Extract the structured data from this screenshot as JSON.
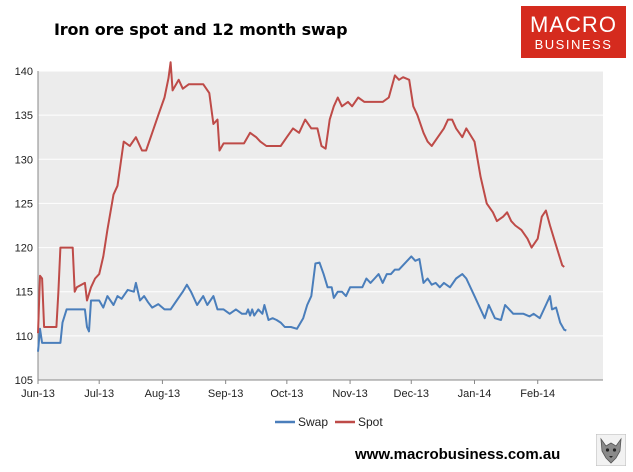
{
  "header": {
    "title": "Iron ore spot and 12 month swap",
    "logo_line1": "MACRO",
    "logo_line2": "BUSINESS",
    "logo_color": "#d52b1e"
  },
  "footer": {
    "url": "www.macrobusiness.com.au",
    "icon": "wolf-icon"
  },
  "chart_data": {
    "type": "line",
    "title": "Iron ore spot and 12 month swap",
    "xlabel": "",
    "ylabel": "",
    "ylim": [
      105,
      140
    ],
    "yticks": [
      105,
      110,
      115,
      120,
      125,
      130,
      135,
      140
    ],
    "xlim": [
      "2013-06-01",
      "2014-03-05"
    ],
    "xticks": [
      {
        "date": "2013-06-01",
        "label": "Jun-13"
      },
      {
        "date": "2013-07-01",
        "label": "Jul-13"
      },
      {
        "date": "2013-08-01",
        "label": "Aug-13"
      },
      {
        "date": "2013-09-01",
        "label": "Sep-13"
      },
      {
        "date": "2013-10-01",
        "label": "Oct-13"
      },
      {
        "date": "2013-11-01",
        "label": "Nov-13"
      },
      {
        "date": "2013-12-01",
        "label": "Dec-13"
      },
      {
        "date": "2014-01-01",
        "label": "Jan-14"
      },
      {
        "date": "2014-02-01",
        "label": "Feb-14"
      }
    ],
    "grid": true,
    "plot_background": "#ececec",
    "legend_position": "bottom",
    "series": [
      {
        "name": "Swap",
        "color": "#4a7ebb",
        "points": [
          [
            "2013-06-01",
            108.2
          ],
          [
            "2013-06-02",
            110.8
          ],
          [
            "2013-06-03",
            109.2
          ],
          [
            "2013-06-07",
            109.2
          ],
          [
            "2013-06-12",
            109.2
          ],
          [
            "2013-06-13",
            111.5
          ],
          [
            "2013-06-15",
            113.0
          ],
          [
            "2013-06-20",
            113.0
          ],
          [
            "2013-06-24",
            113.0
          ],
          [
            "2013-06-25",
            111.0
          ],
          [
            "2013-06-26",
            110.5
          ],
          [
            "2013-06-27",
            114.0
          ],
          [
            "2013-07-01",
            114.0
          ],
          [
            "2013-07-03",
            113.2
          ],
          [
            "2013-07-05",
            114.5
          ],
          [
            "2013-07-08",
            113.5
          ],
          [
            "2013-07-10",
            114.5
          ],
          [
            "2013-07-12",
            114.2
          ],
          [
            "2013-07-15",
            115.2
          ],
          [
            "2013-07-18",
            115.0
          ],
          [
            "2013-07-19",
            116.0
          ],
          [
            "2013-07-21",
            114.0
          ],
          [
            "2013-07-23",
            114.5
          ],
          [
            "2013-07-25",
            113.8
          ],
          [
            "2013-07-27",
            113.2
          ],
          [
            "2013-07-30",
            113.6
          ],
          [
            "2013-08-02",
            113.0
          ],
          [
            "2013-08-05",
            113.0
          ],
          [
            "2013-08-08",
            114.0
          ],
          [
            "2013-08-11",
            115.0
          ],
          [
            "2013-08-13",
            115.8
          ],
          [
            "2013-08-15",
            115.0
          ],
          [
            "2013-08-18",
            113.5
          ],
          [
            "2013-08-21",
            114.5
          ],
          [
            "2013-08-23",
            113.5
          ],
          [
            "2013-08-26",
            114.5
          ],
          [
            "2013-08-28",
            113.0
          ],
          [
            "2013-08-31",
            113.0
          ],
          [
            "2013-09-03",
            112.5
          ],
          [
            "2013-09-06",
            113.0
          ],
          [
            "2013-09-09",
            112.5
          ],
          [
            "2013-09-11",
            112.5
          ],
          [
            "2013-09-12",
            113.0
          ],
          [
            "2013-09-13",
            112.3
          ],
          [
            "2013-09-14",
            113.0
          ],
          [
            "2013-09-15",
            112.3
          ],
          [
            "2013-09-17",
            113.0
          ],
          [
            "2013-09-19",
            112.5
          ],
          [
            "2013-09-20",
            113.5
          ],
          [
            "2013-09-22",
            111.8
          ],
          [
            "2013-09-24",
            112.0
          ],
          [
            "2013-09-26",
            111.8
          ],
          [
            "2013-09-28",
            111.5
          ],
          [
            "2013-09-30",
            111.0
          ],
          [
            "2013-10-03",
            111.0
          ],
          [
            "2013-10-06",
            110.8
          ],
          [
            "2013-10-09",
            112.0
          ],
          [
            "2013-10-11",
            113.5
          ],
          [
            "2013-10-13",
            114.5
          ],
          [
            "2013-10-15",
            118.2
          ],
          [
            "2013-10-17",
            118.3
          ],
          [
            "2013-10-19",
            117.0
          ],
          [
            "2013-10-21",
            115.5
          ],
          [
            "2013-10-23",
            115.5
          ],
          [
            "2013-10-24",
            114.3
          ],
          [
            "2013-10-26",
            115.0
          ],
          [
            "2013-10-28",
            115.0
          ],
          [
            "2013-10-30",
            114.5
          ],
          [
            "2013-11-01",
            115.5
          ],
          [
            "2013-11-04",
            115.5
          ],
          [
            "2013-11-07",
            115.5
          ],
          [
            "2013-11-09",
            116.5
          ],
          [
            "2013-11-11",
            116.0
          ],
          [
            "2013-11-13",
            116.5
          ],
          [
            "2013-11-15",
            117.0
          ],
          [
            "2013-11-17",
            116.0
          ],
          [
            "2013-11-19",
            117.0
          ],
          [
            "2013-11-21",
            117.0
          ],
          [
            "2013-11-23",
            117.5
          ],
          [
            "2013-11-25",
            117.5
          ],
          [
            "2013-11-27",
            118.0
          ],
          [
            "2013-11-29",
            118.5
          ],
          [
            "2013-12-01",
            119.0
          ],
          [
            "2013-12-03",
            118.5
          ],
          [
            "2013-12-05",
            118.7
          ],
          [
            "2013-12-07",
            116.0
          ],
          [
            "2013-12-09",
            116.5
          ],
          [
            "2013-12-11",
            115.8
          ],
          [
            "2013-12-13",
            116.0
          ],
          [
            "2013-12-15",
            115.5
          ],
          [
            "2013-12-17",
            116.0
          ],
          [
            "2013-12-20",
            115.5
          ],
          [
            "2013-12-23",
            116.5
          ],
          [
            "2013-12-26",
            117.0
          ],
          [
            "2013-12-28",
            116.5
          ],
          [
            "2014-01-01",
            114.5
          ],
          [
            "2014-01-03",
            113.5
          ],
          [
            "2014-01-06",
            112.0
          ],
          [
            "2014-01-08",
            113.5
          ],
          [
            "2014-01-11",
            112.0
          ],
          [
            "2014-01-14",
            111.8
          ],
          [
            "2014-01-16",
            113.5
          ],
          [
            "2014-01-20",
            112.5
          ],
          [
            "2014-01-25",
            112.5
          ],
          [
            "2014-01-28",
            112.2
          ],
          [
            "2014-01-30",
            112.5
          ],
          [
            "2014-02-02",
            112.0
          ],
          [
            "2014-02-05",
            113.5
          ],
          [
            "2014-02-07",
            114.5
          ],
          [
            "2014-02-08",
            113.0
          ],
          [
            "2014-02-10",
            113.2
          ],
          [
            "2014-02-12",
            111.5
          ],
          [
            "2014-02-14",
            110.7
          ],
          [
            "2014-02-15",
            110.6
          ]
        ]
      },
      {
        "name": "Spot",
        "color": "#be4b48",
        "points": [
          [
            "2013-06-01",
            110.3
          ],
          [
            "2013-06-02",
            116.8
          ],
          [
            "2013-06-03",
            116.5
          ],
          [
            "2013-06-04",
            111.0
          ],
          [
            "2013-06-10",
            111.0
          ],
          [
            "2013-06-11",
            115.0
          ],
          [
            "2013-06-12",
            120.0
          ],
          [
            "2013-06-18",
            120.0
          ],
          [
            "2013-06-19",
            115.0
          ],
          [
            "2013-06-20",
            115.5
          ],
          [
            "2013-06-24",
            116.0
          ],
          [
            "2013-06-25",
            114.0
          ],
          [
            "2013-06-27",
            115.5
          ],
          [
            "2013-06-29",
            116.5
          ],
          [
            "2013-07-01",
            117.0
          ],
          [
            "2013-07-03",
            119.0
          ],
          [
            "2013-07-05",
            122.0
          ],
          [
            "2013-07-08",
            126.0
          ],
          [
            "2013-07-10",
            127.0
          ],
          [
            "2013-07-13",
            132.0
          ],
          [
            "2013-07-16",
            131.5
          ],
          [
            "2013-07-19",
            132.5
          ],
          [
            "2013-07-22",
            131.0
          ],
          [
            "2013-07-24",
            131.0
          ],
          [
            "2013-07-27",
            133.0
          ],
          [
            "2013-07-30",
            135.0
          ],
          [
            "2013-08-02",
            137.0
          ],
          [
            "2013-08-04",
            139.2
          ],
          [
            "2013-08-05",
            141.0
          ],
          [
            "2013-08-06",
            137.8
          ],
          [
            "2013-08-09",
            139.0
          ],
          [
            "2013-08-11",
            138.0
          ],
          [
            "2013-08-14",
            138.5
          ],
          [
            "2013-08-18",
            138.5
          ],
          [
            "2013-08-21",
            138.5
          ],
          [
            "2013-08-24",
            137.5
          ],
          [
            "2013-08-26",
            134.0
          ],
          [
            "2013-08-28",
            134.5
          ],
          [
            "2013-08-29",
            131.0
          ],
          [
            "2013-08-31",
            131.8
          ],
          [
            "2013-09-05",
            131.8
          ],
          [
            "2013-09-10",
            131.8
          ],
          [
            "2013-09-13",
            133.0
          ],
          [
            "2013-09-16",
            132.5
          ],
          [
            "2013-09-18",
            132.0
          ],
          [
            "2013-09-21",
            131.5
          ],
          [
            "2013-09-24",
            131.5
          ],
          [
            "2013-09-28",
            131.5
          ],
          [
            "2013-10-01",
            132.5
          ],
          [
            "2013-10-04",
            133.5
          ],
          [
            "2013-10-07",
            133.0
          ],
          [
            "2013-10-10",
            134.5
          ],
          [
            "2013-10-13",
            133.5
          ],
          [
            "2013-10-16",
            133.5
          ],
          [
            "2013-10-18",
            131.5
          ],
          [
            "2013-10-20",
            131.2
          ],
          [
            "2013-10-22",
            134.5
          ],
          [
            "2013-10-24",
            136.0
          ],
          [
            "2013-10-26",
            137.0
          ],
          [
            "2013-10-28",
            136.0
          ],
          [
            "2013-10-31",
            136.5
          ],
          [
            "2013-11-02",
            136.0
          ],
          [
            "2013-11-05",
            137.0
          ],
          [
            "2013-11-08",
            136.5
          ],
          [
            "2013-11-11",
            136.5
          ],
          [
            "2013-11-14",
            136.5
          ],
          [
            "2013-11-17",
            136.5
          ],
          [
            "2013-11-20",
            137.0
          ],
          [
            "2013-11-23",
            139.5
          ],
          [
            "2013-11-25",
            139.0
          ],
          [
            "2013-11-27",
            139.3
          ],
          [
            "2013-11-30",
            139.0
          ],
          [
            "2013-12-02",
            136.0
          ],
          [
            "2013-12-04",
            135.0
          ],
          [
            "2013-12-07",
            133.0
          ],
          [
            "2013-12-09",
            132.0
          ],
          [
            "2013-12-11",
            131.5
          ],
          [
            "2013-12-14",
            132.5
          ],
          [
            "2013-12-17",
            133.5
          ],
          [
            "2013-12-19",
            134.5
          ],
          [
            "2013-12-21",
            134.5
          ],
          [
            "2013-12-23",
            133.5
          ],
          [
            "2013-12-26",
            132.5
          ],
          [
            "2013-12-28",
            133.5
          ],
          [
            "2014-01-01",
            132.0
          ],
          [
            "2014-01-04",
            128.0
          ],
          [
            "2014-01-07",
            125.0
          ],
          [
            "2014-01-10",
            124.0
          ],
          [
            "2014-01-12",
            123.0
          ],
          [
            "2014-01-15",
            123.5
          ],
          [
            "2014-01-17",
            124.0
          ],
          [
            "2014-01-19",
            123.0
          ],
          [
            "2014-01-21",
            122.5
          ],
          [
            "2014-01-24",
            122.0
          ],
          [
            "2014-01-27",
            121.0
          ],
          [
            "2014-01-29",
            120.0
          ],
          [
            "2014-02-01",
            121.0
          ],
          [
            "2014-02-03",
            123.5
          ],
          [
            "2014-02-05",
            124.2
          ],
          [
            "2014-02-07",
            122.5
          ],
          [
            "2014-02-09",
            121.0
          ],
          [
            "2014-02-11",
            119.5
          ],
          [
            "2014-02-13",
            118.0
          ],
          [
            "2014-02-14",
            117.8
          ]
        ]
      }
    ]
  }
}
